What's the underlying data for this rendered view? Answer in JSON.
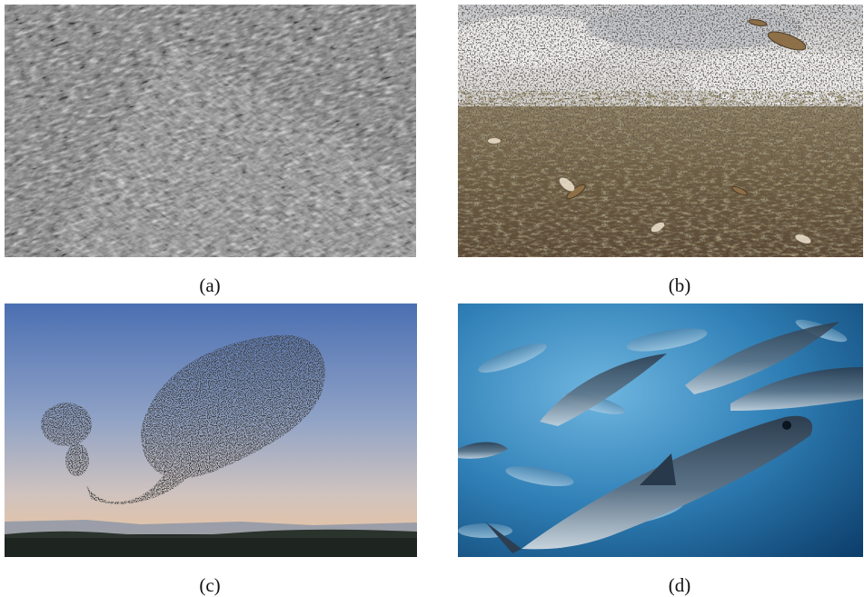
{
  "panels": [
    {
      "id": "a",
      "caption": "(a)",
      "subject": "bacterial-swarm-microscopy"
    },
    {
      "id": "b",
      "caption": "(b)",
      "subject": "locust-swarm"
    },
    {
      "id": "c",
      "caption": "(c)",
      "subject": "starling-murmuration"
    },
    {
      "id": "d",
      "caption": "(d)",
      "subject": "tuna-school"
    }
  ]
}
